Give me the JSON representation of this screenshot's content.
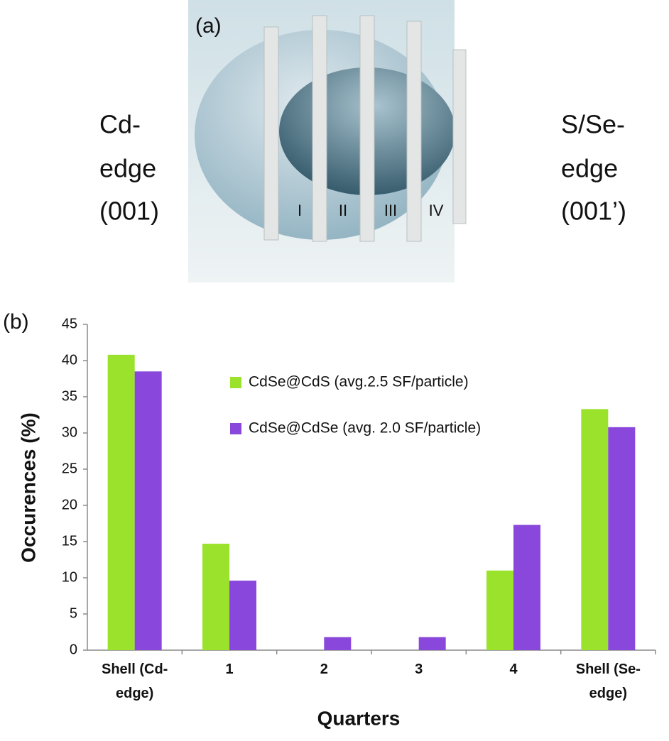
{
  "diagram": {
    "panel_label": "(a)",
    "left_label": [
      "Cd-",
      "edge",
      "(001)"
    ],
    "right_label": [
      "S/Se-",
      "edge",
      "(001’)"
    ],
    "region_labels": [
      "I",
      "II",
      "III",
      "IV"
    ]
  },
  "chart_data": {
    "type": "bar",
    "panel_label": "(b)",
    "y_label": "Occurences (%)",
    "x_label": "Quarters",
    "categories": [
      "Shell (Cd-edge)",
      "1",
      "2",
      "3",
      "4",
      "Shell (Se-edge)"
    ],
    "series": [
      {
        "name": "CdSe@CdS (avg.2.5 SF/particle)",
        "color": "#9be22c",
        "values": [
          40.8,
          14.7,
          0,
          0,
          11,
          33.3
        ]
      },
      {
        "name": "CdSe@CdSe (avg. 2.0 SF/particle)",
        "color": "#8a47db",
        "values": [
          38.5,
          9.6,
          1.8,
          1.8,
          17.3,
          30.8
        ]
      }
    ],
    "ylim": [
      0,
      45
    ],
    "yticks": [
      0,
      5,
      10,
      15,
      20,
      25,
      30,
      35,
      40,
      45
    ],
    "grid": false
  }
}
